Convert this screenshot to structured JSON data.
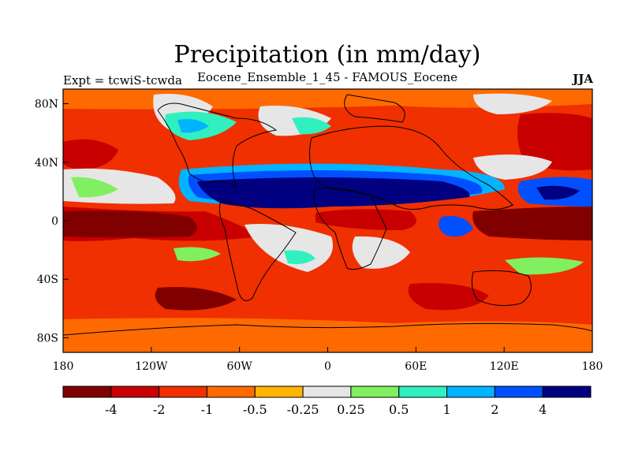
{
  "title": "Precipitation (in mm/day)",
  "subtitle": "Eocene_Ensemble_1_45 - FAMOUS_Eocene",
  "experiment_label": "Expt = tcwiS-tcwda",
  "season_label": "JJA",
  "map": {
    "lon_ticks": [
      "180",
      "120W",
      "60W",
      "0",
      "60E",
      "120E",
      "180"
    ],
    "lat_ticks": [
      "80N",
      "40N",
      "0",
      "40S",
      "80S"
    ]
  },
  "colorbar": {
    "colors": [
      "#800000",
      "#c80000",
      "#f03000",
      "#ff6a00",
      "#ffb400",
      "#e6e6e6",
      "#80f060",
      "#30f0c0",
      "#00b4ff",
      "#0050ff",
      "#000080"
    ],
    "labels": [
      "-4",
      "-2",
      "-1",
      "-0.5",
      "-0.25",
      "0.25",
      "0.5",
      "1",
      "2",
      "4"
    ]
  }
}
